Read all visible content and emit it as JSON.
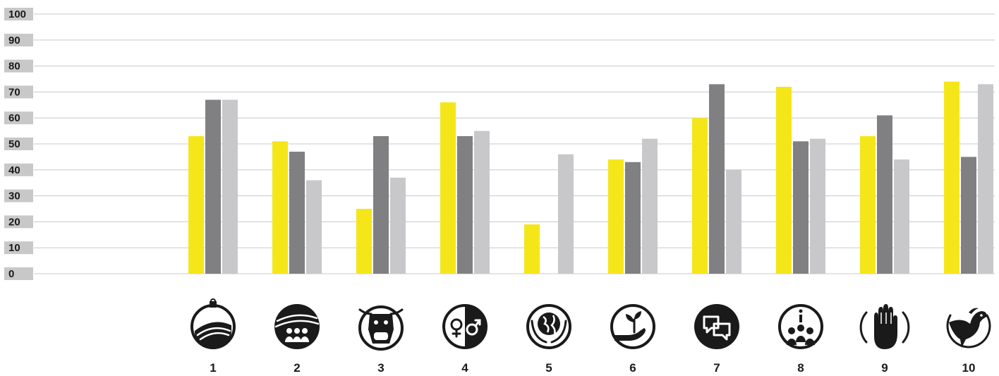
{
  "chart_data": {
    "type": "bar",
    "title": "",
    "xlabel": "",
    "ylabel": "",
    "ylim": [
      0,
      100
    ],
    "yticks": [
      "0",
      "10",
      "20",
      "30",
      "40",
      "50",
      "60",
      "70",
      "80",
      "90",
      "100"
    ],
    "grid": true,
    "categories": [
      "1",
      "2",
      "3",
      "4",
      "5",
      "6",
      "7",
      "8",
      "9",
      "10"
    ],
    "category_icons": [
      "land-tenure-icon",
      "community-people-icon",
      "livestock-cow-icon",
      "gender-icon",
      "earth-care-icon",
      "plant-in-hand-icon",
      "dialogue-icon",
      "participation-icon",
      "raised-hand-icon",
      "dove-icon"
    ],
    "series": [
      {
        "color": "#f5e61a",
        "values": [
          53,
          51,
          25,
          66,
          19,
          44,
          60,
          72,
          53,
          74
        ]
      },
      {
        "color": "#808083",
        "values": [
          67,
          47,
          53,
          53,
          0,
          43,
          73,
          51,
          61,
          45
        ]
      },
      {
        "color": "#c8c8ca",
        "values": [
          67,
          36,
          37,
          55,
          46,
          52,
          40,
          52,
          44,
          73
        ]
      }
    ]
  }
}
